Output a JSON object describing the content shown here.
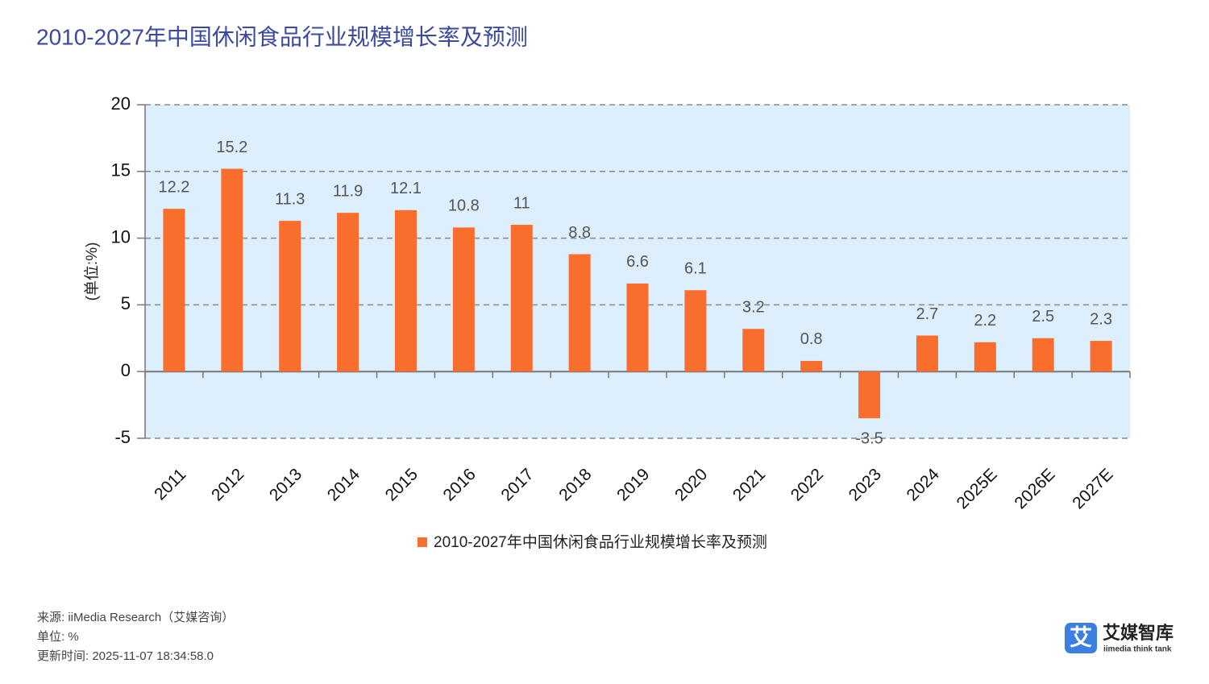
{
  "chart_data": {
    "type": "bar",
    "title": "2010-2027年中国休闲食品行业规模增长率及预测",
    "y_label": "(单位:%)",
    "categories": [
      "2011",
      "2012",
      "2013",
      "2014",
      "2015",
      "2016",
      "2017",
      "2018",
      "2019",
      "2020",
      "2021",
      "2022",
      "2023",
      "2024",
      "2025E",
      "2026E",
      "2027E"
    ],
    "series": [
      {
        "name": "2010-2027年中国休闲食品行业规模增长率及预测",
        "color": "#fa6e2d",
        "values": [
          12.2,
          15.2,
          11.3,
          11.9,
          12.1,
          10.8,
          11,
          8.8,
          6.6,
          6.1,
          3.2,
          0.8,
          -3.5,
          2.7,
          2.2,
          2.5,
          2.3
        ]
      }
    ],
    "ylim": [
      -5,
      20
    ],
    "yticks": [
      -5,
      0,
      5,
      10,
      15,
      20
    ],
    "grid": true
  },
  "footer": {
    "source": "来源: iiMedia Research（艾媒咨询）",
    "unit": "单位: %",
    "updated": "更新时间: 2025-11-07 18:34:58.0"
  },
  "logo": {
    "icon": "艾",
    "name": "艾媒智库",
    "subtitle": "iimedia think tank"
  }
}
